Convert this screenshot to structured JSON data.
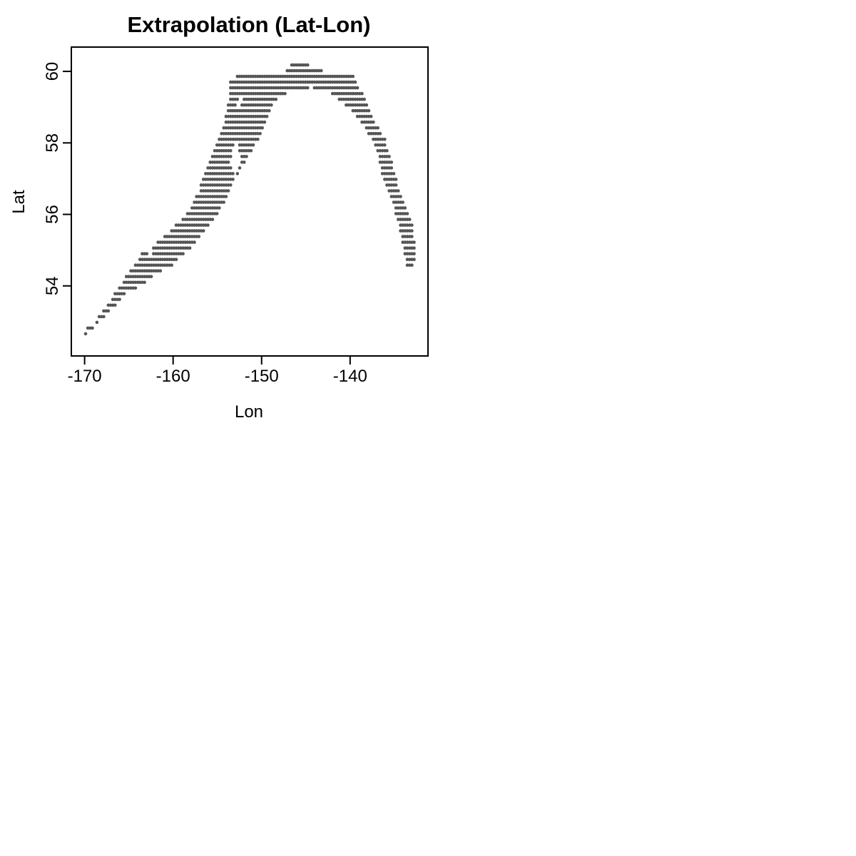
{
  "chart_data": {
    "type": "scatter",
    "title": "Extrapolation (Lat-Lon)",
    "xlabel": "Lon",
    "ylabel": "Lat",
    "x_ticks": [
      -170,
      -160,
      -150,
      -140
    ],
    "y_ticks": [
      54,
      56,
      58,
      60
    ],
    "x_tick_labels": [
      "-170",
      "-160",
      "-150",
      "-140"
    ],
    "y_tick_labels": [
      "54",
      "56",
      "58",
      "60"
    ],
    "xlim": [
      -171.5,
      -131.2
    ],
    "ylim": [
      52.04,
      60.68
    ],
    "grid": false,
    "point_color": "#555555",
    "region_outline": [
      [
        -170,
        52.6
      ],
      [
        -167.5,
        53.2
      ],
      [
        -165.5,
        53.75
      ],
      [
        -163.5,
        54.05
      ],
      [
        -162,
        54.3
      ],
      [
        -160,
        54.6
      ],
      [
        -158.3,
        55.0
      ],
      [
        -156.5,
        55.5
      ],
      [
        -155,
        56.0
      ],
      [
        -154,
        56.45
      ],
      [
        -152.8,
        57.1
      ],
      [
        -151.5,
        57.6
      ],
      [
        -150.4,
        58.1
      ],
      [
        -149.6,
        58.6
      ],
      [
        -148.8,
        59.1
      ],
      [
        -147.8,
        59.3
      ],
      [
        -146.5,
        59.45
      ],
      [
        -144.5,
        59.55
      ],
      [
        -142.5,
        59.5
      ],
      [
        -141.5,
        59.25
      ],
      [
        -139.8,
        58.9
      ],
      [
        -138.2,
        58.4
      ],
      [
        -137,
        57.8
      ],
      [
        -136.5,
        57.2
      ],
      [
        -135.5,
        56.6
      ],
      [
        -134.8,
        56.0
      ],
      [
        -134.3,
        55.4
      ],
      [
        -133.8,
        54.9
      ],
      [
        -133.5,
        54.4
      ],
      [
        -132.8,
        54.5
      ],
      [
        -132.7,
        55.2
      ],
      [
        -133,
        55.8
      ],
      [
        -134,
        56.3
      ],
      [
        -134.8,
        57.0
      ],
      [
        -135.4,
        57.6
      ],
      [
        -136.2,
        58.2
      ],
      [
        -137.5,
        58.7
      ],
      [
        -138.5,
        59.3
      ],
      [
        -139.6,
        59.9
      ],
      [
        -141,
        60.0
      ],
      [
        -142.5,
        60.0
      ],
      [
        -144,
        60.05
      ],
      [
        -145.5,
        60.3
      ],
      [
        -146.5,
        60.3
      ],
      [
        -147.2,
        60.0
      ],
      [
        -148.5,
        59.9
      ],
      [
        -149.8,
        59.95
      ],
      [
        -151.6,
        60.0
      ],
      [
        -153.5,
        59.8
      ],
      [
        -153.8,
        59.0
      ],
      [
        -154.3,
        58.4
      ],
      [
        -155.3,
        57.8
      ],
      [
        -156.2,
        57.3
      ],
      [
        -157,
        56.7
      ],
      [
        -158,
        56.2
      ],
      [
        -159.2,
        55.8
      ],
      [
        -161.5,
        55.3
      ],
      [
        -163.5,
        54.9
      ],
      [
        -165,
        54.4
      ],
      [
        -166.5,
        53.8
      ],
      [
        -168,
        53.3
      ],
      [
        -169,
        52.9
      ],
      [
        -170.2,
        52.75
      ]
    ],
    "holes": [
      [
        [
          -153.2,
          58.0
        ],
        [
          -152.6,
          58.0
        ],
        [
          -152.4,
          57.5
        ],
        [
          -152.9,
          57.0
        ],
        [
          -153.6,
          57.4
        ]
      ],
      [
        [
          -162.8,
          55.1
        ],
        [
          -162.3,
          55.1
        ],
        [
          -162.4,
          54.8
        ],
        [
          -162.9,
          54.85
        ]
      ],
      [
        [
          -152.6,
          59.3
        ],
        [
          -152.1,
          59.25
        ],
        [
          -152.4,
          58.9
        ],
        [
          -152.8,
          59.0
        ]
      ]
    ],
    "grid_step_deg": 0.16
  }
}
